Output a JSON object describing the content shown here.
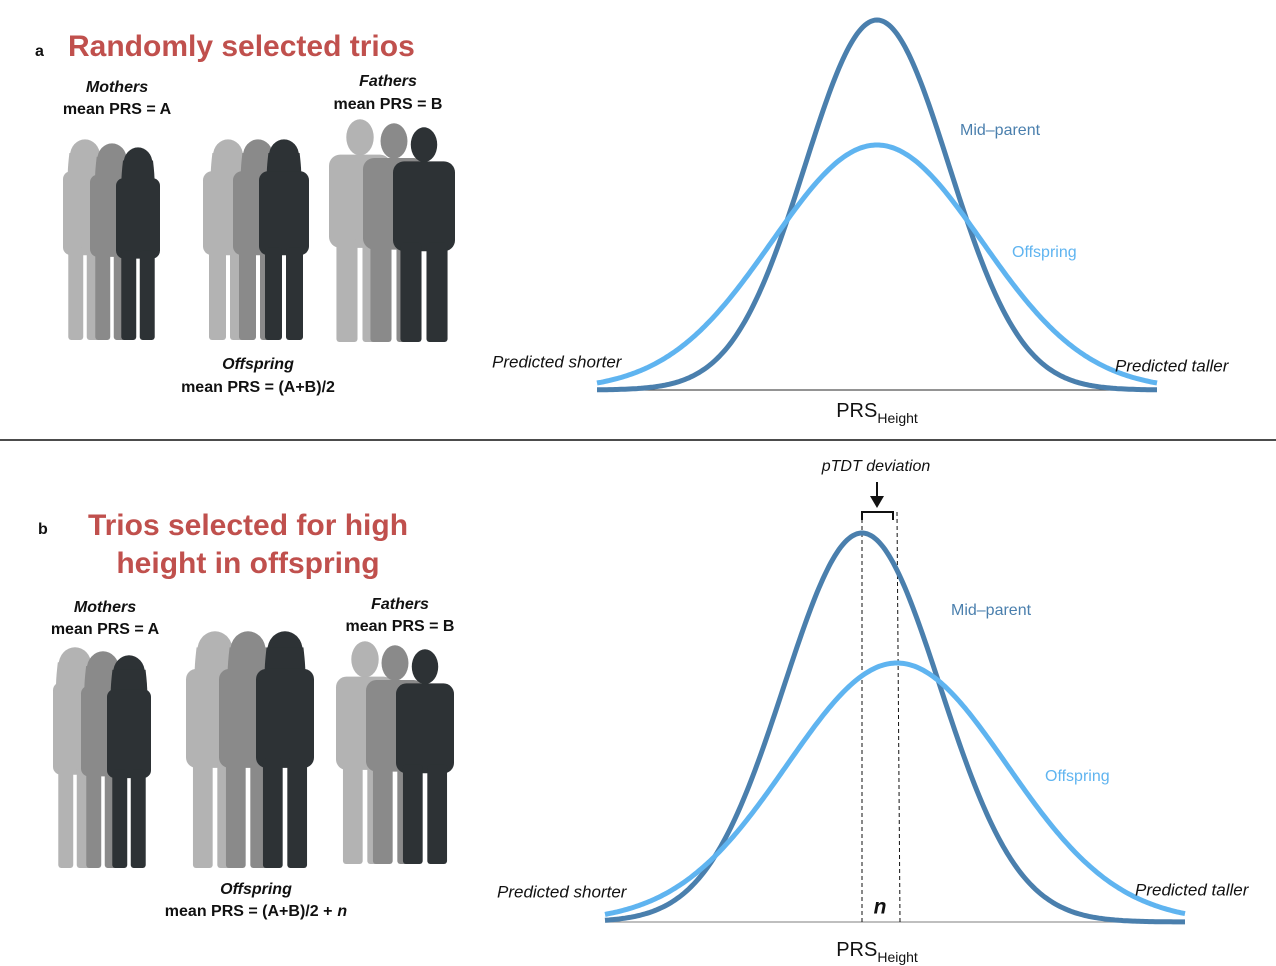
{
  "panel_a": {
    "label": "a",
    "title": "Randomly selected trios",
    "mothers": {
      "name": "Mothers",
      "mean": "mean PRS = A"
    },
    "fathers": {
      "name": "Fathers",
      "mean": "mean PRS = B"
    },
    "offspring": {
      "name": "Offspring",
      "mean": "mean PRS = (A+B)/2"
    },
    "curves": {
      "mid_parent": "Mid–parent",
      "offspring": "Offspring"
    },
    "left_label": "Predicted shorter",
    "right_label": "Predicted taller",
    "axis": {
      "main": "PRS",
      "sub": "Height"
    }
  },
  "panel_b": {
    "label": "b",
    "title": [
      "Trios selected for high",
      "height in offspring"
    ],
    "mothers": {
      "name": "Mothers",
      "mean": "mean PRS = A"
    },
    "fathers": {
      "name": "Fathers",
      "mean": "mean PRS = B"
    },
    "offspring": {
      "name": "Offspring",
      "mean": "mean PRS = (A+B)/2 +",
      "mean_symbol": "n"
    },
    "curves": {
      "mid_parent": "Mid–parent",
      "offspring": "Offspring"
    },
    "deviation_label": "pTDT deviation",
    "deviation_symbol": "n",
    "left_label": "Predicted shorter",
    "right_label": "Predicted taller",
    "axis": {
      "main": "PRS",
      "sub": "Height"
    }
  }
}
